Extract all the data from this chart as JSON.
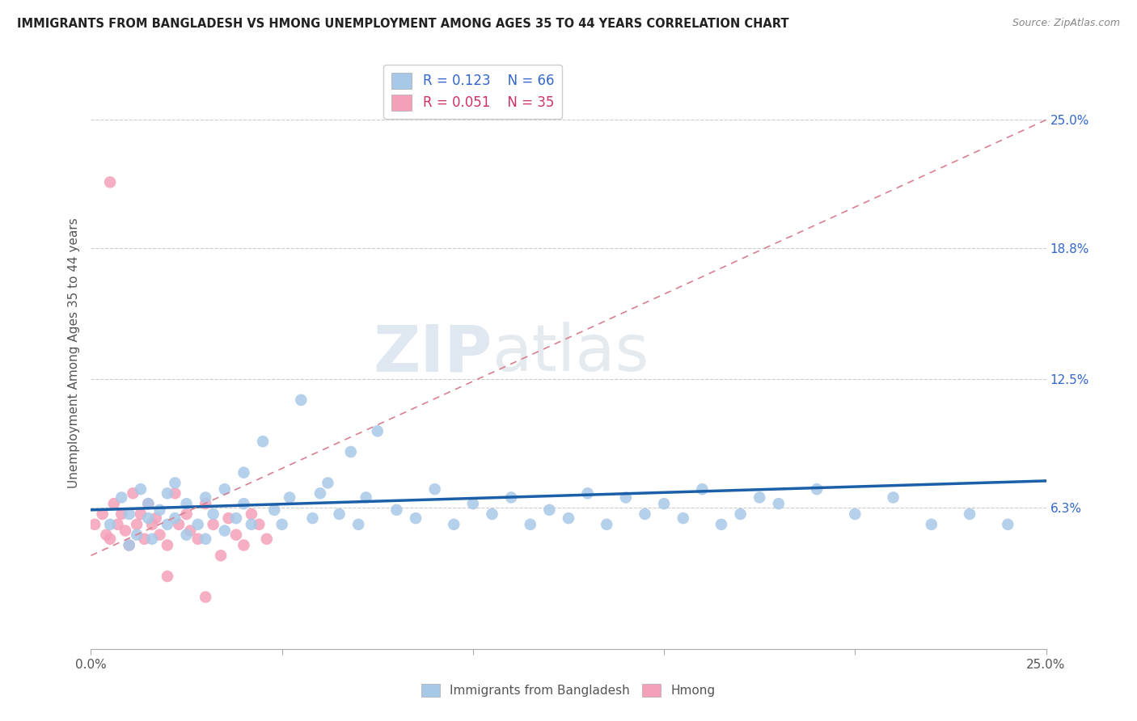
{
  "title": "IMMIGRANTS FROM BANGLADESH VS HMONG UNEMPLOYMENT AMONG AGES 35 TO 44 YEARS CORRELATION CHART",
  "source": "Source: ZipAtlas.com",
  "ylabel": "Unemployment Among Ages 35 to 44 years",
  "xlim": [
    0.0,
    0.25
  ],
  "ylim": [
    -0.005,
    0.28
  ],
  "yticks": [
    0.063,
    0.125,
    0.188,
    0.25
  ],
  "ytick_labels": [
    "6.3%",
    "12.5%",
    "18.8%",
    "25.0%"
  ],
  "xticks": [
    0.0,
    0.05,
    0.1,
    0.15,
    0.2,
    0.25
  ],
  "xtick_labels": [
    "0.0%",
    "",
    "",
    "",
    "",
    "25.0%"
  ],
  "legend_blue_r": "R = 0.123",
  "legend_blue_n": "N = 66",
  "legend_pink_r": "R = 0.051",
  "legend_pink_n": "N = 35",
  "blue_color": "#a8c8e8",
  "blue_line_color": "#1a5fa8",
  "pink_color": "#f4a0b8",
  "pink_line_color": "#d88090",
  "watermark_zip": "ZIP",
  "watermark_atlas": "atlas",
  "bangladesh_x": [
    0.005,
    0.008,
    0.01,
    0.01,
    0.012,
    0.013,
    0.015,
    0.015,
    0.016,
    0.018,
    0.02,
    0.02,
    0.022,
    0.022,
    0.025,
    0.025,
    0.028,
    0.03,
    0.03,
    0.032,
    0.035,
    0.035,
    0.038,
    0.04,
    0.04,
    0.042,
    0.045,
    0.048,
    0.05,
    0.052,
    0.055,
    0.058,
    0.06,
    0.062,
    0.065,
    0.068,
    0.07,
    0.072,
    0.075,
    0.08,
    0.085,
    0.09,
    0.095,
    0.1,
    0.105,
    0.11,
    0.115,
    0.12,
    0.125,
    0.13,
    0.135,
    0.14,
    0.145,
    0.15,
    0.155,
    0.16,
    0.165,
    0.17,
    0.175,
    0.18,
    0.19,
    0.2,
    0.21,
    0.22,
    0.23,
    0.24
  ],
  "bangladesh_y": [
    0.055,
    0.068,
    0.045,
    0.06,
    0.05,
    0.072,
    0.058,
    0.065,
    0.048,
    0.062,
    0.055,
    0.07,
    0.058,
    0.075,
    0.05,
    0.065,
    0.055,
    0.068,
    0.048,
    0.06,
    0.052,
    0.072,
    0.058,
    0.065,
    0.08,
    0.055,
    0.095,
    0.062,
    0.055,
    0.068,
    0.115,
    0.058,
    0.07,
    0.075,
    0.06,
    0.09,
    0.055,
    0.068,
    0.1,
    0.062,
    0.058,
    0.072,
    0.055,
    0.065,
    0.06,
    0.068,
    0.055,
    0.062,
    0.058,
    0.07,
    0.055,
    0.068,
    0.06,
    0.065,
    0.058,
    0.072,
    0.055,
    0.06,
    0.068,
    0.065,
    0.072,
    0.06,
    0.068,
    0.055,
    0.06,
    0.055
  ],
  "hmong_x": [
    0.001,
    0.003,
    0.004,
    0.005,
    0.006,
    0.007,
    0.008,
    0.009,
    0.01,
    0.011,
    0.012,
    0.013,
    0.014,
    0.015,
    0.016,
    0.017,
    0.018,
    0.02,
    0.022,
    0.023,
    0.025,
    0.026,
    0.028,
    0.03,
    0.032,
    0.034,
    0.036,
    0.038,
    0.04,
    0.042,
    0.044,
    0.046,
    0.005,
    0.02,
    0.03
  ],
  "hmong_y": [
    0.055,
    0.06,
    0.05,
    0.048,
    0.065,
    0.055,
    0.06,
    0.052,
    0.045,
    0.07,
    0.055,
    0.06,
    0.048,
    0.065,
    0.055,
    0.058,
    0.05,
    0.045,
    0.07,
    0.055,
    0.06,
    0.052,
    0.048,
    0.065,
    0.055,
    0.04,
    0.058,
    0.05,
    0.045,
    0.06,
    0.055,
    0.048,
    0.22,
    0.03,
    0.02
  ],
  "blue_trend_x": [
    0.0,
    0.25
  ],
  "blue_trend_y": [
    0.062,
    0.076
  ],
  "pink_trend_x": [
    0.0,
    0.25
  ],
  "pink_trend_y": [
    0.04,
    0.25
  ]
}
